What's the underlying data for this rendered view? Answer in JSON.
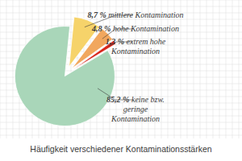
{
  "chart_data": {
    "type": "pie",
    "title": "Häufigkeit verschiedener Kontaminationsstärken",
    "categories": [
      "mittlere Kontamination",
      "hohe Kontamination",
      "extrem hohe Kontamination",
      "keine bzw. geringe Kontamination"
    ],
    "values": [
      8.7,
      4.8,
      1.3,
      85.2
    ],
    "value_labels": [
      "8,7 %",
      "4,8 %",
      "1,3 %",
      "85,2 %"
    ],
    "colors": [
      "#f6d36a",
      "#f1a75e",
      "#d8261c",
      "#a9d6b9"
    ],
    "data_labels": true
  }
}
